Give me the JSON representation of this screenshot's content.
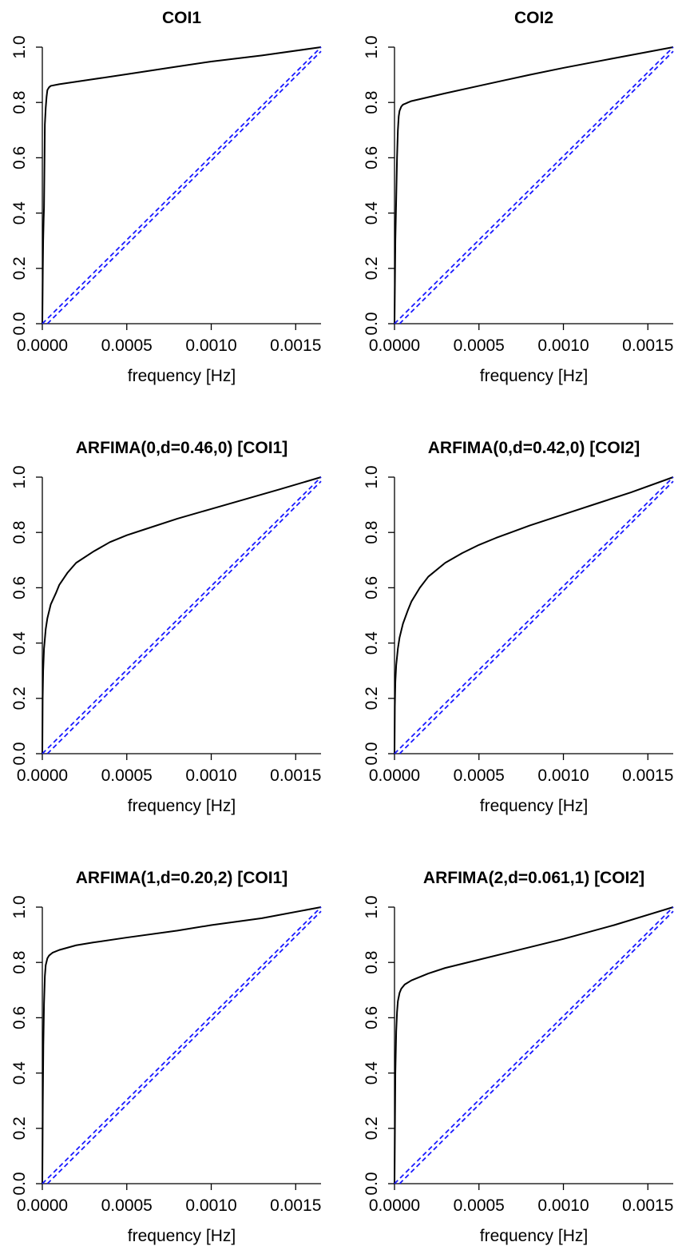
{
  "chart_data": [
    {
      "type": "line",
      "title": "COI1",
      "xlabel": "frequency [Hz]",
      "ylabel": "",
      "xlim": [
        0,
        0.00165
      ],
      "ylim": [
        0,
        1
      ],
      "xticks": [
        "0.0000",
        "0.0005",
        "0.0010",
        "0.0015"
      ],
      "yticks": [
        "0.0",
        "0.2",
        "0.4",
        "0.6",
        "0.8",
        "1.0"
      ],
      "series": [
        {
          "style": "solid",
          "color": "#000000",
          "x": [
            0,
            3e-06,
            5e-06,
            8e-06,
            1e-05,
            1.3e-05,
            1.5e-05,
            2e-05,
            2.5e-05,
            3e-05,
            4e-05,
            5e-05,
            0.0001,
            0.0003,
            0.0005,
            0.0008,
            0.001,
            0.0013,
            0.00165
          ],
          "y": [
            0,
            0.2,
            0.3,
            0.38,
            0.42,
            0.6,
            0.72,
            0.78,
            0.82,
            0.845,
            0.855,
            0.86,
            0.866,
            0.884,
            0.902,
            0.93,
            0.948,
            0.97,
            1.0
          ]
        },
        {
          "style": "dashed",
          "color": "#1a1aff",
          "x": [
            0,
            0.00165
          ],
          "y": [
            0.0,
            1.0
          ]
        },
        {
          "style": "dashed",
          "color": "#1a1aff",
          "x": [
            3e-05,
            0.00165
          ],
          "y": [
            0.0,
            0.985
          ]
        }
      ]
    },
    {
      "type": "line",
      "title": "COI2",
      "xlabel": "frequency [Hz]",
      "ylabel": "",
      "xlim": [
        0,
        0.00165
      ],
      "ylim": [
        0,
        1
      ],
      "xticks": [
        "0.0000",
        "0.0005",
        "0.0010",
        "0.0015"
      ],
      "yticks": [
        "0.0",
        "0.2",
        "0.4",
        "0.6",
        "0.8",
        "1.0"
      ],
      "series": [
        {
          "style": "solid",
          "color": "#000000",
          "x": [
            0,
            5e-06,
            1e-05,
            1.5e-05,
            2e-05,
            2.5e-05,
            3e-05,
            4e-05,
            5e-05,
            8e-05,
            0.0001,
            0.0003,
            0.0005,
            0.0008,
            0.001,
            0.0013,
            0.00165
          ],
          "y": [
            0,
            0.3,
            0.45,
            0.6,
            0.7,
            0.75,
            0.77,
            0.785,
            0.792,
            0.8,
            0.805,
            0.833,
            0.86,
            0.9,
            0.925,
            0.96,
            1.0
          ]
        },
        {
          "style": "dashed",
          "color": "#1a1aff",
          "x": [
            0,
            0.00165
          ],
          "y": [
            0.0,
            1.0
          ]
        },
        {
          "style": "dashed",
          "color": "#1a1aff",
          "x": [
            3e-05,
            0.00165
          ],
          "y": [
            0.0,
            0.985
          ]
        }
      ]
    },
    {
      "type": "line",
      "title": "ARFIMA(0,d=0.46,0) [COI1]",
      "xlabel": "frequency [Hz]",
      "ylabel": "",
      "xlim": [
        0,
        0.00165
      ],
      "ylim": [
        0,
        1
      ],
      "xticks": [
        "0.0000",
        "0.0005",
        "0.0010",
        "0.0015"
      ],
      "yticks": [
        "0.0",
        "0.2",
        "0.4",
        "0.6",
        "0.8",
        "1.0"
      ],
      "series": [
        {
          "style": "solid",
          "color": "#000000",
          "x": [
            0,
            2e-06,
            5e-06,
            1e-05,
            2e-05,
            3e-05,
            5e-05,
            8e-05,
            0.0001,
            0.00015,
            0.0002,
            0.0003,
            0.0004,
            0.0005,
            0.0006,
            0.0008,
            0.001,
            0.0012,
            0.0014,
            0.00165
          ],
          "y": [
            0,
            0.2,
            0.3,
            0.38,
            0.45,
            0.49,
            0.54,
            0.58,
            0.61,
            0.655,
            0.69,
            0.73,
            0.765,
            0.79,
            0.81,
            0.85,
            0.885,
            0.92,
            0.955,
            1.0
          ]
        },
        {
          "style": "dashed",
          "color": "#1a1aff",
          "x": [
            0,
            0.00165
          ],
          "y": [
            0.0,
            1.0
          ]
        },
        {
          "style": "dashed",
          "color": "#1a1aff",
          "x": [
            3e-05,
            0.00165
          ],
          "y": [
            0.0,
            0.985
          ]
        }
      ]
    },
    {
      "type": "line",
      "title": "ARFIMA(0,d=0.42,0) [COI2]",
      "xlabel": "frequency [Hz]",
      "ylabel": "",
      "xlim": [
        0,
        0.00165
      ],
      "ylim": [
        0,
        1
      ],
      "xticks": [
        "0.0000",
        "0.0005",
        "0.0010",
        "0.0015"
      ],
      "yticks": [
        "0.0",
        "0.2",
        "0.4",
        "0.6",
        "0.8",
        "1.0"
      ],
      "series": [
        {
          "style": "solid",
          "color": "#000000",
          "x": [
            0,
            2e-06,
            5e-06,
            1e-05,
            2e-05,
            3e-05,
            5e-05,
            8e-05,
            0.0001,
            0.00015,
            0.0002,
            0.0003,
            0.0004,
            0.0005,
            0.0006,
            0.0008,
            0.001,
            0.0012,
            0.0014,
            0.00165
          ],
          "y": [
            0,
            0.17,
            0.26,
            0.32,
            0.38,
            0.42,
            0.47,
            0.52,
            0.55,
            0.6,
            0.64,
            0.69,
            0.725,
            0.755,
            0.78,
            0.825,
            0.865,
            0.905,
            0.945,
            1.0
          ]
        },
        {
          "style": "dashed",
          "color": "#1a1aff",
          "x": [
            0,
            0.00165
          ],
          "y": [
            0.0,
            1.0
          ]
        },
        {
          "style": "dashed",
          "color": "#1a1aff",
          "x": [
            3e-05,
            0.00165
          ],
          "y": [
            0.0,
            0.985
          ]
        }
      ]
    },
    {
      "type": "line",
      "title": "ARFIMA(1,d=0.20,2) [COI1]",
      "xlabel": "frequency [Hz]",
      "ylabel": "",
      "xlim": [
        0,
        0.00165
      ],
      "ylim": [
        0,
        1
      ],
      "xticks": [
        "0.0000",
        "0.0005",
        "0.0010",
        "0.0015"
      ],
      "yticks": [
        "0.0",
        "0.2",
        "0.4",
        "0.6",
        "0.8",
        "1.0"
      ],
      "series": [
        {
          "style": "solid",
          "color": "#000000",
          "x": [
            0,
            3e-06,
            6e-06,
            1e-05,
            1.5e-05,
            2e-05,
            3e-05,
            4e-05,
            6e-05,
            0.0001,
            0.0002,
            0.0003,
            0.0005,
            0.0008,
            0.001,
            0.0013,
            0.00165
          ],
          "y": [
            0,
            0.3,
            0.5,
            0.65,
            0.75,
            0.79,
            0.815,
            0.825,
            0.835,
            0.845,
            0.862,
            0.872,
            0.89,
            0.915,
            0.935,
            0.96,
            1.0
          ]
        },
        {
          "style": "dashed",
          "color": "#1a1aff",
          "x": [
            0,
            0.00165
          ],
          "y": [
            0.0,
            1.0
          ]
        },
        {
          "style": "dashed",
          "color": "#1a1aff",
          "x": [
            3e-05,
            0.00165
          ],
          "y": [
            0.0,
            0.985
          ]
        }
      ]
    },
    {
      "type": "line",
      "title": "ARFIMA(2,d=0.061,1) [COI2]",
      "xlabel": "frequency [Hz]",
      "ylabel": "",
      "xlim": [
        0,
        0.00165
      ],
      "ylim": [
        0,
        1
      ],
      "xticks": [
        "0.0000",
        "0.0005",
        "0.0010",
        "0.0015"
      ],
      "yticks": [
        "0.0",
        "0.2",
        "0.4",
        "0.6",
        "0.8",
        "1.0"
      ],
      "series": [
        {
          "style": "solid",
          "color": "#000000",
          "x": [
            0,
            5e-06,
            1e-05,
            1.5e-05,
            2e-05,
            3e-05,
            4e-05,
            6e-05,
            0.0001,
            0.0002,
            0.0003,
            0.0005,
            0.0008,
            0.001,
            0.0013,
            0.00165
          ],
          "y": [
            0,
            0.4,
            0.55,
            0.62,
            0.66,
            0.69,
            0.705,
            0.72,
            0.735,
            0.76,
            0.78,
            0.81,
            0.855,
            0.885,
            0.935,
            1.0
          ]
        },
        {
          "style": "dashed",
          "color": "#1a1aff",
          "x": [
            0,
            0.00165
          ],
          "y": [
            0.0,
            1.0
          ]
        },
        {
          "style": "dashed",
          "color": "#1a1aff",
          "x": [
            3e-05,
            0.00165
          ],
          "y": [
            0.0,
            0.985
          ]
        }
      ]
    }
  ]
}
